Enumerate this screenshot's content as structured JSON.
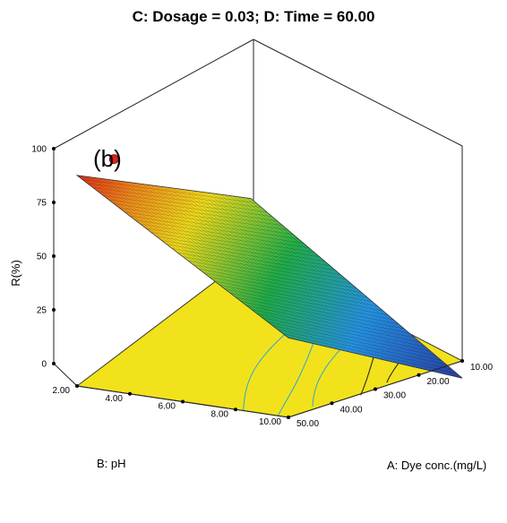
{
  "chart_data": {
    "type": "surface",
    "title": "C: Dosage = 0.03; D: Time = 60.00",
    "panel_label": "(b)",
    "zlabel": "R(%)",
    "xlabel": "A: Dye conc.(mg/L)",
    "ylabel": "B: pH",
    "x_ticks": [
      "10.00",
      "20.00",
      "30.00",
      "40.00",
      "50.00"
    ],
    "y_ticks": [
      "2.00",
      "4.00",
      "6.00",
      "8.00",
      "10.00"
    ],
    "z_ticks": [
      "0",
      "25",
      "50",
      "75",
      "100"
    ],
    "xlim": [
      10,
      50
    ],
    "ylim": [
      2,
      10
    ],
    "zlim": [
      0,
      100
    ],
    "corner_values": [
      {
        "x": 10,
        "y": 2,
        "z": 98
      },
      {
        "x": 50,
        "y": 2,
        "z": 37
      },
      {
        "x": 10,
        "y": 10,
        "z": 61
      },
      {
        "x": 50,
        "y": 10,
        "z": -8
      }
    ],
    "design_point": {
      "x": 10,
      "y": 3.7,
      "z": 100
    },
    "colors": {
      "low": "#2a3aa8",
      "mid": "#22b14c",
      "high": "#e0201a",
      "floor": "#f2e21c",
      "contour": "#2ba6d6",
      "design_point": "#e0201a"
    }
  }
}
